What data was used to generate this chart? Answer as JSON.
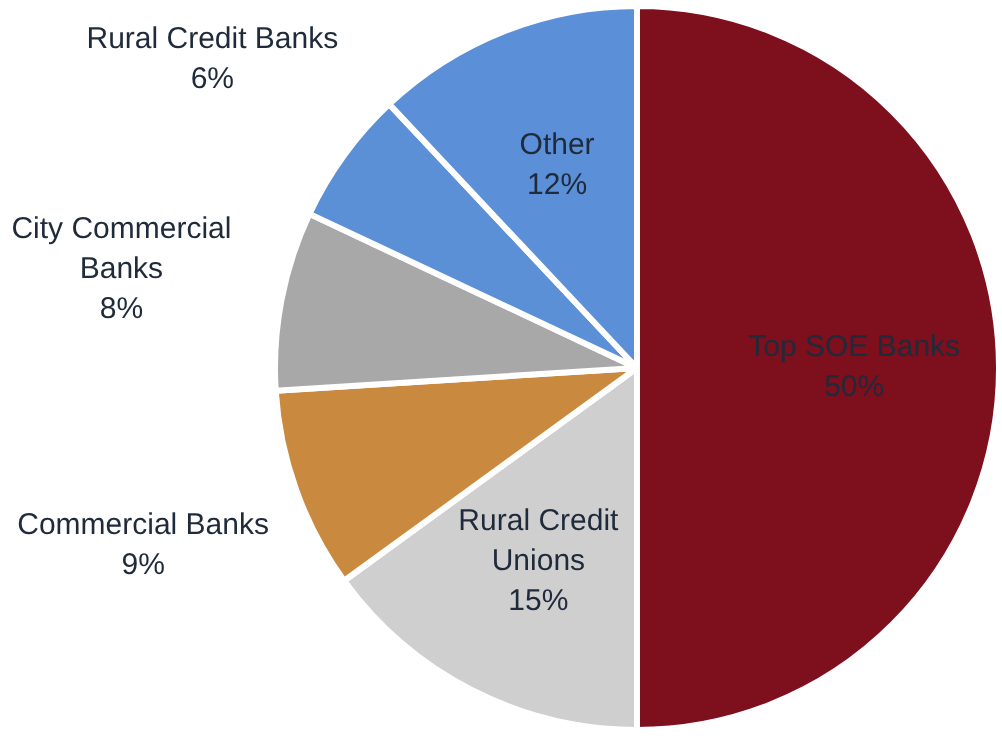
{
  "chart_data": {
    "type": "pie",
    "categories": [
      "Top SOE Banks",
      "Rural Credit Unions",
      "Commercial Banks",
      "City Commercial Banks",
      "Rural Credit Banks",
      "Other"
    ],
    "values": [
      50,
      15,
      9,
      8,
      6,
      12
    ],
    "colors": [
      "#7e0f1d",
      "#cfcfcf",
      "#c98a3f",
      "#a8a8a8",
      "#5b8fd6",
      "#5b90d8"
    ],
    "value_labels": [
      "50%",
      "15%",
      "9%",
      "8%",
      "6%",
      "12%"
    ],
    "legend": false
  }
}
